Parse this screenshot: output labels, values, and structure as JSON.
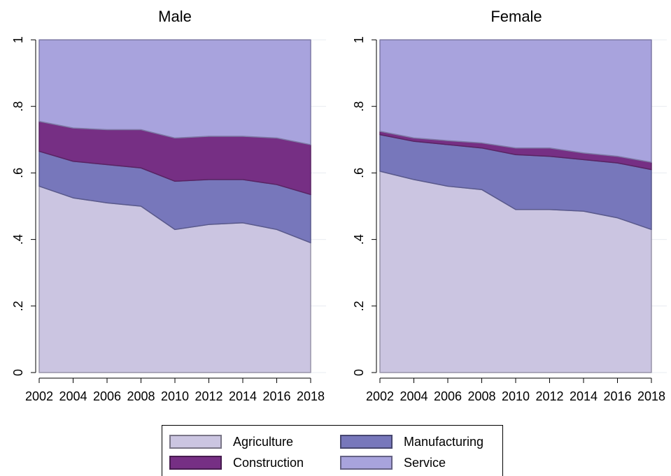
{
  "chart_data": {
    "type": "area",
    "stacked": true,
    "colors": {
      "Agriculture": "#cbc5e1",
      "Manufacturing": "#7777bb",
      "Construction": "#762f84",
      "Service": "#a8a3dd"
    },
    "series_order": [
      "Agriculture",
      "Manufacturing",
      "Construction",
      "Service"
    ],
    "panels": [
      {
        "title": "Male",
        "x": [
          2002,
          2004,
          2006,
          2008,
          2010,
          2012,
          2014,
          2016,
          2018
        ],
        "x_ticks": [
          "2002",
          "2004",
          "2006",
          "2008",
          "2010",
          "2012",
          "2014",
          "2016",
          "2018"
        ],
        "y_ticks": [
          "0",
          ".2",
          ".4",
          ".6",
          ".8",
          "1"
        ],
        "ylim": [
          0,
          1
        ],
        "series": [
          {
            "name": "Agriculture",
            "values": [
              0.56,
              0.525,
              0.51,
              0.5,
              0.43,
              0.445,
              0.45,
              0.43,
              0.39
            ]
          },
          {
            "name": "Manufacturing",
            "values": [
              0.105,
              0.11,
              0.115,
              0.115,
              0.145,
              0.135,
              0.13,
              0.135,
              0.145
            ]
          },
          {
            "name": "Construction",
            "values": [
              0.09,
              0.1,
              0.105,
              0.115,
              0.13,
              0.13,
              0.13,
              0.14,
              0.15
            ]
          },
          {
            "name": "Service",
            "values": [
              0.245,
              0.265,
              0.27,
              0.27,
              0.295,
              0.29,
              0.29,
              0.295,
              0.315
            ]
          }
        ]
      },
      {
        "title": "Female",
        "x": [
          2002,
          2004,
          2006,
          2008,
          2010,
          2012,
          2014,
          2016,
          2018
        ],
        "x_ticks": [
          "2002",
          "2004",
          "2006",
          "2008",
          "2010",
          "2012",
          "2014",
          "2016",
          "2018"
        ],
        "y_ticks": [
          "0",
          ".2",
          ".4",
          ".6",
          ".8",
          "1"
        ],
        "ylim": [
          0,
          1
        ],
        "series": [
          {
            "name": "Agriculture",
            "values": [
              0.605,
              0.58,
              0.56,
              0.55,
              0.49,
              0.49,
              0.485,
              0.465,
              0.43
            ]
          },
          {
            "name": "Manufacturing",
            "values": [
              0.11,
              0.115,
              0.125,
              0.125,
              0.165,
              0.16,
              0.155,
              0.165,
              0.18
            ]
          },
          {
            "name": "Construction",
            "values": [
              0.01,
              0.01,
              0.012,
              0.015,
              0.02,
              0.025,
              0.02,
              0.02,
              0.022
            ]
          },
          {
            "name": "Service",
            "values": [
              0.275,
              0.295,
              0.303,
              0.31,
              0.325,
              0.325,
              0.34,
              0.35,
              0.368
            ]
          }
        ]
      }
    ],
    "legend": {
      "position": "bottom",
      "items": [
        "Agriculture",
        "Manufacturing",
        "Construction",
        "Service"
      ]
    },
    "grid": true
  }
}
